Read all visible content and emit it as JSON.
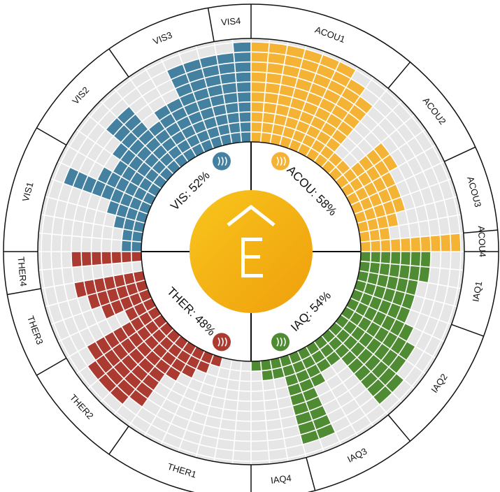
{
  "chart_data": {
    "type": "radial_bar",
    "rlim": [
      0,
      10
    ],
    "rticks": [
      1,
      2,
      3,
      4,
      5,
      6,
      7,
      8,
      9,
      10
    ],
    "groups": [
      {
        "label": "ACOU: 58%",
        "color": "#f5b335",
        "items": [
          {
            "name": "ACOU1",
            "values": [
              10,
              10,
              10,
              10,
              10,
              10,
              9,
              8
            ]
          },
          {
            "name": "ACOU2",
            "values": [
              2,
              2,
              6,
              6,
              5
            ]
          },
          {
            "name": "ACOU3",
            "values": [
              5,
              5,
              4,
              3
            ]
          },
          {
            "name": "ACOU4",
            "values": [
              10
            ]
          }
        ]
      },
      {
        "label": "IAQ: 54%",
        "color": "#4f8b32",
        "items": [
          {
            "name": "IAQ1",
            "values": [
              7,
              7,
              6,
              6
            ]
          },
          {
            "name": "IAQ2",
            "values": [
              6,
              7,
              8,
              8,
              9,
              9
            ]
          },
          {
            "name": "IAQ3",
            "values": [
              3,
              3,
              4,
              9,
              9
            ]
          },
          {
            "name": "IAQ4",
            "values": [
              2,
              2,
              1
            ]
          }
        ]
      },
      {
        "label": "THER: 48%",
        "color": "#ab3b30",
        "items": [
          {
            "name": "THER1",
            "values": [
              0,
              0,
              0,
              1,
              2,
              3,
              4
            ]
          },
          {
            "name": "THER2",
            "values": [
              8,
              9,
              9,
              9,
              8
            ]
          },
          {
            "name": "THER3",
            "values": [
              3,
              5,
              6,
              7
            ]
          },
          {
            "name": "THER4",
            "values": [
              0,
              7
            ]
          }
        ]
      },
      {
        "label": "VIS: 52%",
        "color": "#44809f",
        "items": [
          {
            "name": "VIS1",
            "values": [
              2,
              2,
              3,
              4,
              9,
              6
            ]
          },
          {
            "name": "VIS2",
            "values": [
              5,
              6,
              8,
              8,
              5
            ]
          },
          {
            "name": "VIS3",
            "values": [
              6,
              6,
              9,
              9,
              9
            ]
          },
          {
            "name": "VIS4",
            "values": [
              9,
              10
            ]
          }
        ]
      }
    ]
  }
}
